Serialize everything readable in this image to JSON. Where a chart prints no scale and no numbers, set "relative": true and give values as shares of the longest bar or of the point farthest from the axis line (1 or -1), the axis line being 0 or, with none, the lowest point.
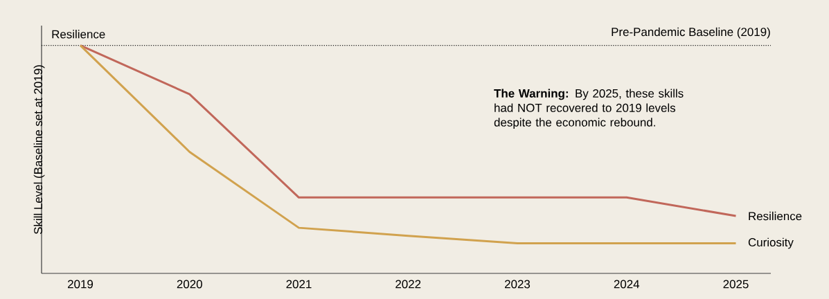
{
  "chart_data": {
    "type": "line",
    "relative": true,
    "ylabel": "Skill Level (Baseline set at 2019)",
    "categories": [
      "2019",
      "2020",
      "2021",
      "2022",
      "2023",
      "2024",
      "2025"
    ],
    "series": [
      {
        "name": "Resilience",
        "color": "#c1675a",
        "values": [
          1,
          0.786,
          0.333,
          0.333,
          0.333,
          0.333,
          0.252
        ]
      },
      {
        "name": "Curiosity",
        "color": "#d1a24e",
        "values": [
          1,
          0.533,
          0.2,
          0.165,
          0.132,
          0.132,
          0.132
        ]
      }
    ],
    "ref_lines": [
      {
        "axis": "y",
        "value": 1,
        "label": "Pre-Pandemic Baseline (2019)",
        "color": "#222222",
        "line_style": "dotted"
      }
    ],
    "annotations": [
      "Resilience",
      "**The Warning:** By 2025, these skills had NOT recovered to 2019 levels despite the economic rebound."
    ]
  }
}
